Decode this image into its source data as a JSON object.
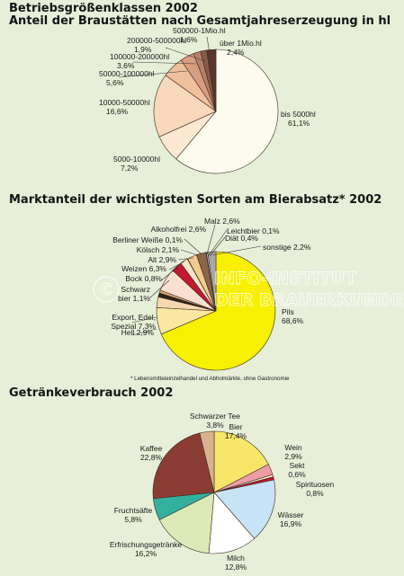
{
  "titles": {
    "chart1_line1": "Betriebsgrößenklassen 2002",
    "chart1_line2": "Anteil der Braustätten nach Gesamtjahreserzeugung in hl",
    "chart2": "Marktanteil der wichtigsten Sorten am Bierabsatz* 2002",
    "chart3": "Getränkeverbrauch 2002"
  },
  "footnote": "* Lebensmitteleinzelhandel und Abholmärkte, ohne Gastronomie",
  "watermark": {
    "line1": "INFO-INSTITUT",
    "line2": "DER BRAUERKUNDE"
  },
  "chart_data": [
    {
      "type": "pie",
      "title": "Betriebsgrößenklassen 2002 — Anteil der Braustätten nach Gesamtjahreserzeugung in hl",
      "slices": [
        {
          "label": "bis 5000hl",
          "value": 61.1,
          "value_text": "61,1%",
          "color": "#fdfbee"
        },
        {
          "label": "5000-10000hl",
          "value": 7.2,
          "value_text": "7,2%",
          "color": "#fbe9d2"
        },
        {
          "label": "10000-50000hl",
          "value": 16.6,
          "value_text": "16,6%",
          "color": "#f9d8bb"
        },
        {
          "label": "50000-100000hl",
          "value": 5.6,
          "value_text": "5,6%",
          "color": "#f0bf9c"
        },
        {
          "label": "100000-200000hl",
          "value": 3.6,
          "value_text": "3,6%",
          "color": "#d99d80"
        },
        {
          "label": "200000-500000hl",
          "value": 1.9,
          "value_text": "1,9%",
          "color": "#b8806a"
        },
        {
          "label": "500000-1Mio.hl",
          "value": 1.6,
          "value_text": "1,6%",
          "color": "#8a5a49"
        },
        {
          "label": "über 1Mio.hl",
          "value": 2.4,
          "value_text": "2,4%",
          "color": "#5a372c"
        }
      ]
    },
    {
      "type": "pie",
      "title": "Marktanteil der wichtigsten Sorten am Bierabsatz* 2002",
      "slices": [
        {
          "label": "Pils",
          "value": 68.6,
          "value_text": "68,6%",
          "color": "#f7f000"
        },
        {
          "label": "Export, Edel, Spezial",
          "value": 7.3,
          "value_text": "7,3%",
          "color": "#fbe8a0"
        },
        {
          "label": "Hell",
          "value": 2.9,
          "value_text": "2,9%",
          "color": "#f6d9b0"
        },
        {
          "label": "Schwarzbier",
          "value": 1.1,
          "value_text": "1,1%",
          "color": "#2a2318"
        },
        {
          "label": "Bock",
          "value": 0.8,
          "value_text": "0,8%",
          "color": "#d8a070"
        },
        {
          "label": "Weizen",
          "value": 6.3,
          "value_text": "6,3%",
          "color": "#fae0d0"
        },
        {
          "label": "Alt",
          "value": 2.9,
          "value_text": "2,9%",
          "color": "#c21830"
        },
        {
          "label": "Kölsch",
          "value": 2.1,
          "value_text": "2,1%",
          "color": "#f4e4c8"
        },
        {
          "label": "Berliner Weiße",
          "value": 0.1,
          "value_text": "0,1%",
          "color": "#7fb3a0"
        },
        {
          "label": "Alkoholfrei",
          "value": 2.6,
          "value_text": "2,6%",
          "color": "#f2cc8c"
        },
        {
          "label": "Malz",
          "value": 2.6,
          "value_text": "2,6%",
          "color": "#8c6448"
        },
        {
          "label": "Leichtbier",
          "value": 0.1,
          "value_text": "0,1%",
          "color": "#ffffff"
        },
        {
          "label": "Diät",
          "value": 0.4,
          "value_text": "0,4%",
          "color": "#b8c8e8"
        },
        {
          "label": "sonstige",
          "value": 2.2,
          "value_text": "2,2%",
          "color": "#a8a8a8"
        }
      ]
    },
    {
      "type": "pie",
      "title": "Getränkeverbrauch 2002",
      "slices": [
        {
          "label": "Bier",
          "value": 17.4,
          "value_text": "17,4%",
          "color": "#f8e66a"
        },
        {
          "label": "Wein",
          "value": 2.9,
          "value_text": "2,9%",
          "color": "#ee9ca6"
        },
        {
          "label": "Sekt",
          "value": 0.6,
          "value_text": "0,6%",
          "color": "#f6f0d0"
        },
        {
          "label": "Spirituosen",
          "value": 0.8,
          "value_text": "0,8%",
          "color": "#c21830"
        },
        {
          "label": "Wässer",
          "value": 16.9,
          "value_text": "16,9%",
          "color": "#c8e2f6"
        },
        {
          "label": "Milch",
          "value": 12.8,
          "value_text": "12,8%",
          "color": "#ffffff"
        },
        {
          "label": "Erfrischungsgetränke",
          "value": 16.2,
          "value_text": "16,2%",
          "color": "#dbeab8"
        },
        {
          "label": "Fruchtsäfte",
          "value": 5.8,
          "value_text": "5,8%",
          "color": "#33b0a0"
        },
        {
          "label": "Kaffee",
          "value": 22.8,
          "value_text": "22,8%",
          "color": "#8b3c32"
        },
        {
          "label": "Schwarzer Tee",
          "value": 3.8,
          "value_text": "3,8%",
          "color": "#d8b28e"
        }
      ]
    }
  ]
}
